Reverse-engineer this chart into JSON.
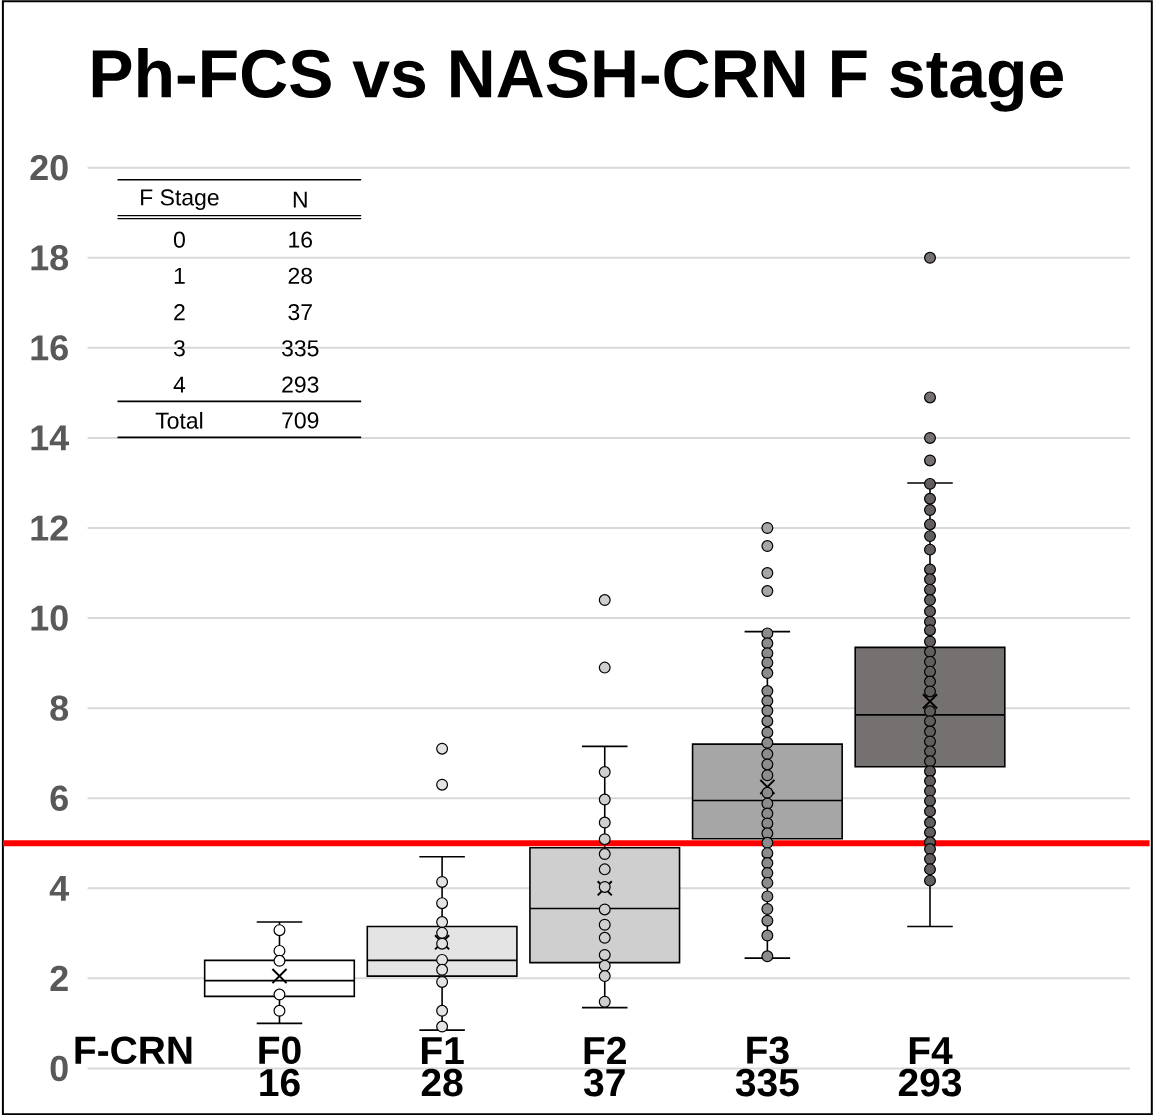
{
  "chart_data": {
    "type": "box",
    "title": "Ph-FCS vs NASH-CRN F stage",
    "xlabel": "F-CRN",
    "categories": [
      "F0",
      "F1",
      "F2",
      "F3",
      "F4"
    ],
    "colors": [
      "#ffffff",
      "#e4e4e4",
      "#d0cfcf",
      "#a6a6a6",
      "#757170"
    ],
    "boxes": [
      {
        "low": 1.0,
        "q1": 1.6,
        "median": 1.95,
        "q3": 2.4,
        "high": 3.25,
        "mean": 2.05
      },
      {
        "low": 0.85,
        "q1": 2.05,
        "median": 2.4,
        "q3": 3.15,
        "high": 4.7,
        "mean": 2.8,
        "outliers": [
          7.1,
          6.3
        ]
      },
      {
        "low": 1.35,
        "q1": 2.35,
        "median": 3.55,
        "q3": 4.9,
        "high": 7.15,
        "mean": 4.0,
        "outliers": [
          10.4,
          8.9
        ]
      },
      {
        "low": 2.45,
        "q1": 5.1,
        "median": 5.95,
        "q3": 7.2,
        "high": 9.7,
        "mean": 6.25,
        "outliers": [
          12.0,
          11.6,
          11.0,
          10.6
        ]
      },
      {
        "low": 3.15,
        "q1": 6.7,
        "median": 7.85,
        "q3": 9.35,
        "high": 13.0,
        "mean": 8.15,
        "outliers": [
          18.0,
          14.9,
          14.0,
          13.5
        ]
      }
    ],
    "series": [
      {
        "type": "scatter",
        "color": "#ffffff",
        "x": [
          "F0",
          "F0",
          "F0",
          "F0",
          "F0"
        ],
        "values": [
          3.07,
          2.61,
          2.39,
          1.64,
          1.28
        ]
      },
      {
        "type": "scatter",
        "color": "#e4e4e4",
        "x": [
          "F1",
          "F1",
          "F1",
          "F1",
          "F1",
          "F1",
          "F1",
          "F1",
          "F1",
          "F1"
        ],
        "values": [
          4.14,
          3.67,
          3.25,
          3.01,
          2.77,
          2.41,
          2.19,
          1.92,
          1.28,
          0.93
        ]
      },
      {
        "type": "scatter",
        "color": "#d0cfcf",
        "x": [
          "F2",
          "F2",
          "F2",
          "F2",
          "F2",
          "F2",
          "F2",
          "F2",
          "F2",
          "F2",
          "F2",
          "F2",
          "F2",
          "F2"
        ],
        "values": [
          6.58,
          5.97,
          5.46,
          5.09,
          4.76,
          4.42,
          4.03,
          3.53,
          3.19,
          2.9,
          2.52,
          2.28,
          2.05,
          1.48
        ]
      },
      {
        "type": "scatter",
        "color": "#8c8c8c",
        "x": [
          "F3",
          "F3",
          "F3",
          "F3",
          "F3",
          "F3",
          "F3",
          "F3",
          "F3",
          "F3",
          "F3",
          "F3",
          "F3",
          "F3",
          "F3",
          "F3",
          "F3",
          "F3",
          "F3",
          "F3",
          "F3",
          "F3",
          "F3",
          "F3",
          "F3",
          "F3",
          "F3",
          "F3",
          "F3"
        ],
        "values": [
          9.66,
          9.44,
          9.22,
          9.01,
          8.78,
          8.38,
          8.16,
          7.94,
          7.71,
          7.46,
          7.23,
          6.98,
          6.75,
          6.51,
          6.12,
          5.88,
          5.66,
          5.44,
          5.22,
          5.01,
          4.78,
          4.56,
          4.34,
          4.12,
          3.82,
          3.54,
          3.28,
          2.95,
          2.49
        ]
      },
      {
        "type": "scatter",
        "color": "#625e5e",
        "x": [
          "F4",
          "F4",
          "F4",
          "F4",
          "F4",
          "F4",
          "F4",
          "F4",
          "F4",
          "F4",
          "F4",
          "F4",
          "F4",
          "F4",
          "F4",
          "F4",
          "F4",
          "F4",
          "F4",
          "F4",
          "F4",
          "F4",
          "F4",
          "F4",
          "F4",
          "F4",
          "F4",
          "F4",
          "F4",
          "F4",
          "F4",
          "F4",
          "F4",
          "F4",
          "F4",
          "F4",
          "F4"
        ],
        "values": [
          12.98,
          12.65,
          12.4,
          12.08,
          11.82,
          11.52,
          11.08,
          10.86,
          10.63,
          10.4,
          10.15,
          9.92,
          9.73,
          9.48,
          9.25,
          9.03,
          8.81,
          8.59,
          8.37,
          7.93,
          7.71,
          7.48,
          7.26,
          7.04,
          6.82,
          6.6,
          6.38,
          6.16,
          5.94,
          5.71,
          5.46,
          5.24,
          5.02,
          4.87,
          4.65,
          4.42,
          4.17
        ]
      }
    ],
    "ylim": [
      0,
      20
    ],
    "yticks": [
      0,
      2,
      4,
      6,
      8,
      10,
      12,
      14,
      16,
      18,
      20
    ],
    "grid": "y",
    "ref_lines": [
      {
        "axis": "y",
        "value": 5,
        "color": "#ff0000"
      }
    ],
    "annotations": [
      "F Stage",
      "N",
      "0",
      "16",
      "1",
      "28",
      "2",
      "37",
      "3",
      "335",
      "4",
      "293",
      "Total",
      "709",
      "16",
      "28",
      "37",
      "335",
      "293"
    ]
  }
}
